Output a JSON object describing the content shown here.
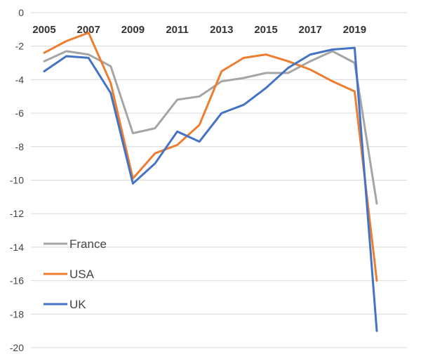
{
  "chart_data": {
    "type": "line",
    "title": "",
    "xlabel": "",
    "ylabel": "",
    "ylim": [
      -20,
      0
    ],
    "yticks": [
      0,
      -2,
      -4,
      -6,
      -8,
      -10,
      -12,
      -14,
      -16,
      -18,
      -20
    ],
    "ytick_labels": [
      "0",
      "-2",
      "-4",
      "-6",
      "-8",
      "-10",
      "-12",
      "-14",
      "-16",
      "-18",
      "-20"
    ],
    "x": [
      2005,
      2006,
      2007,
      2008,
      2009,
      2010,
      2011,
      2012,
      2013,
      2014,
      2015,
      2016,
      2017,
      2018,
      2019,
      2020
    ],
    "xticks": [
      2005,
      2007,
      2009,
      2011,
      2013,
      2015,
      2017,
      2019
    ],
    "xtick_labels": [
      "2005",
      "2007",
      "2009",
      "2011",
      "2013",
      "2015",
      "2017",
      "2019"
    ],
    "grid": true,
    "legend_position": "bottom-left",
    "series": [
      {
        "name": "France",
        "color": "#a5a5a5",
        "values": [
          -2.9,
          -2.3,
          -2.5,
          -3.2,
          -7.2,
          -6.9,
          -5.2,
          -5.0,
          -4.1,
          -3.9,
          -3.6,
          -3.6,
          -2.9,
          -2.3,
          -3.0,
          -11.4
        ]
      },
      {
        "name": "USA",
        "color": "#ed7d31",
        "values": [
          -2.4,
          -1.7,
          -1.2,
          -4.2,
          -9.9,
          -8.4,
          -7.9,
          -6.7,
          -3.5,
          -2.7,
          -2.5,
          -2.9,
          -3.4,
          -4.1,
          -4.7,
          -16.0
        ]
      },
      {
        "name": "UK",
        "color": "#4472c4",
        "values": [
          -3.5,
          -2.6,
          -2.7,
          -4.8,
          -10.2,
          -9.0,
          -7.1,
          -7.7,
          -6.0,
          -5.5,
          -4.5,
          -3.3,
          -2.5,
          -2.2,
          -2.1,
          -19.0
        ]
      }
    ]
  }
}
